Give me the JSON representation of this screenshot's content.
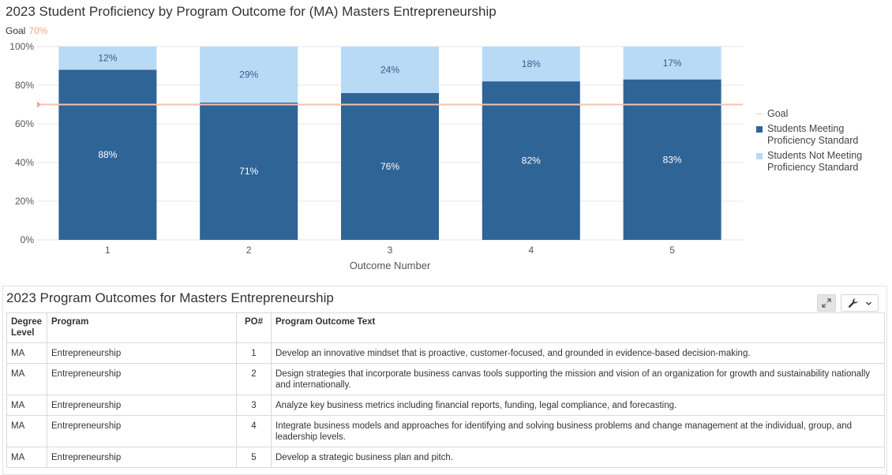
{
  "chart": {
    "title": "2023 Student Proficiency by Program Outcome for (MA) Masters Entrepreneurship",
    "goal_label": "Goal",
    "goal_value_text": "70%"
  },
  "chart_data": {
    "type": "bar",
    "stacked": true,
    "xlabel": "Outcome Number",
    "ylabel": "",
    "categories": [
      "1",
      "2",
      "3",
      "4",
      "5"
    ],
    "ylim": [
      0,
      100
    ],
    "yticks": [
      "0%",
      "20%",
      "40%",
      "60%",
      "80%",
      "100%"
    ],
    "goal": 70,
    "series": [
      {
        "name": "Students Meeting Proficiency Standard",
        "values": [
          88,
          71,
          76,
          82,
          83
        ],
        "labels": [
          "88%",
          "71%",
          "76%",
          "82%",
          "83%"
        ],
        "color": "#2f6496"
      },
      {
        "name": "Students Not Meeting Proficiency Standard",
        "values": [
          12,
          29,
          24,
          18,
          17
        ],
        "labels": [
          "12%",
          "29%",
          "24%",
          "18%",
          "17%"
        ],
        "color": "#b9daf5"
      }
    ],
    "goal_color": "#f4c3b0",
    "grid": true,
    "legend_position": "right"
  },
  "legend": {
    "goal": "Goal",
    "meeting_line1": "Students Meeting",
    "meeting_line2": "Proficiency Standard",
    "notmeeting_line1": "Students Not Meeting",
    "notmeeting_line2": "Proficiency Standard"
  },
  "panel": {
    "title": "2023 Program Outcomes for Masters Entrepreneurship",
    "expand_icon": "expand-icon",
    "wrench_icon": "wrench-icon",
    "dropdown_icon": "chevron-down-icon"
  },
  "table": {
    "headers": {
      "degree_line1": "Degree",
      "degree_line2": "Level",
      "program": "Program",
      "po": "PO#",
      "text": "Program Outcome Text"
    },
    "rows": [
      {
        "degree": "MA",
        "program": "Entrepreneurship",
        "po": "1",
        "text": "Develop an innovative mindset that is proactive, customer-focused, and grounded in evidence-based decision-making."
      },
      {
        "degree": "MA",
        "program": "Entrepreneurship",
        "po": "2",
        "text": "Design strategies that incorporate business canvas tools supporting the mission and vision of an organization for growth and sustainability nationally and internationally."
      },
      {
        "degree": "MA",
        "program": "Entrepreneurship",
        "po": "3",
        "text": "Analyze key business metrics including financial reports, funding, legal compliance, and forecasting."
      },
      {
        "degree": "MA",
        "program": "Entrepreneurship",
        "po": "4",
        "text": "Integrate business models and approaches for identifying and solving business problems and change management at the individual, group, and leadership levels."
      },
      {
        "degree": "MA",
        "program": "Entrepreneurship",
        "po": "5",
        "text": "Develop a strategic business plan and pitch."
      }
    ]
  }
}
